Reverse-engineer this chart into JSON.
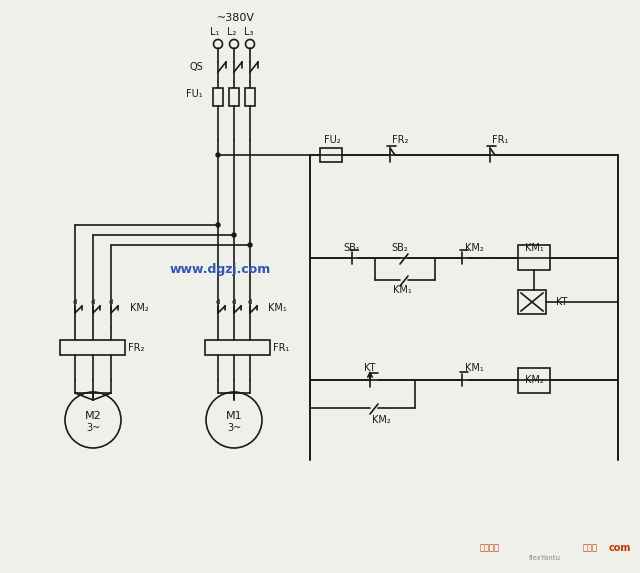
{
  "bg_color": "#f0f0eb",
  "line_color": "#1a1a1a",
  "fig_width": 6.4,
  "fig_height": 5.73,
  "watermark": "www.dgzj.com",
  "watermark_color": "#3355bb",
  "label_380": "~380V",
  "label_L1": "L₁",
  "label_L2": "L₂",
  "label_L3": "L₃",
  "label_QS": "QS",
  "label_FU1": "FU₁",
  "label_FU2": "FU₂",
  "label_FR1": "FR₁",
  "label_FR2": "FR₂",
  "label_SB1": "SB₁",
  "label_SB2": "SB₂",
  "label_KM1": "KM₁",
  "label_KM2": "KM₂",
  "label_KT": "KT",
  "label_M1": "M1",
  "label_M2": "M2",
  "label_3phase": "3~",
  "bottom_right1": "电工之居",
  "bottom_right2": "flexYantu",
  "bottom_right3": "接线图",
  "bottom_right4": "com"
}
